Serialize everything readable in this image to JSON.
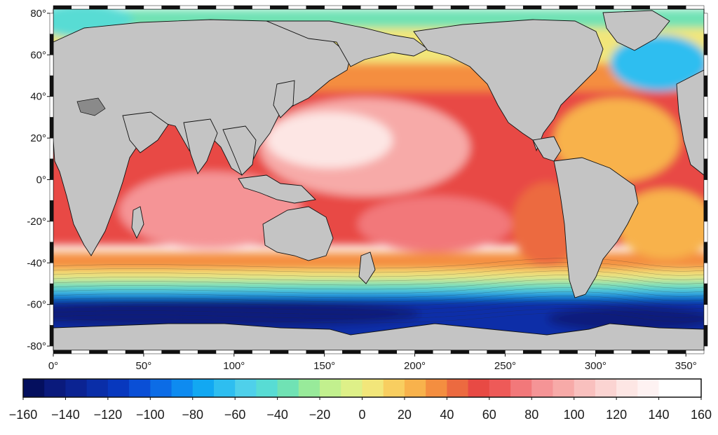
{
  "map": {
    "x_axis": {
      "ticks": [
        "0°",
        "50°",
        "100°",
        "150°",
        "200°",
        "250°",
        "300°",
        "350°"
      ],
      "values": [
        0,
        50,
        100,
        150,
        200,
        250,
        300,
        350
      ],
      "range": [
        0,
        360
      ]
    },
    "y_axis": {
      "ticks": [
        "80°",
        "60°",
        "40°",
        "20°",
        "0°",
        "-20°",
        "-40°",
        "-60°",
        "-80°"
      ],
      "values": [
        80,
        60,
        40,
        20,
        0,
        -20,
        -40,
        -60,
        -80
      ],
      "range": [
        -82,
        82
      ]
    },
    "land_fill_color": "#c4c4c4",
    "frame_style": "alternating black-white border"
  },
  "colorbar": {
    "min": -160,
    "max": 160,
    "step": 10,
    "labels": [
      "−160",
      "−140",
      "−120",
      "−100",
      "−80",
      "−60",
      "−40",
      "−20",
      "0",
      "20",
      "40",
      "60",
      "80",
      "100",
      "120",
      "140",
      "160"
    ],
    "colors": [
      "#040f5e",
      "#0a1a7c",
      "#0b2392",
      "#0a2ea8",
      "#0838be",
      "#0a4fd6",
      "#0c6ce6",
      "#0e8bf0",
      "#12a8f2",
      "#2ebef0",
      "#4fd0ea",
      "#58dcd4",
      "#70e2b4",
      "#98ea9a",
      "#c2f08e",
      "#def088",
      "#f2e67a",
      "#f8ce60",
      "#f8b24c",
      "#f48e40",
      "#ec6a40",
      "#e84a44",
      "#ee5a58",
      "#f2787a",
      "#f59496",
      "#f7aaa8",
      "#f9c0be",
      "#fbd4d2",
      "#fde6e4",
      "#fef2f2",
      "#ffffff",
      "#ffffff"
    ]
  }
}
